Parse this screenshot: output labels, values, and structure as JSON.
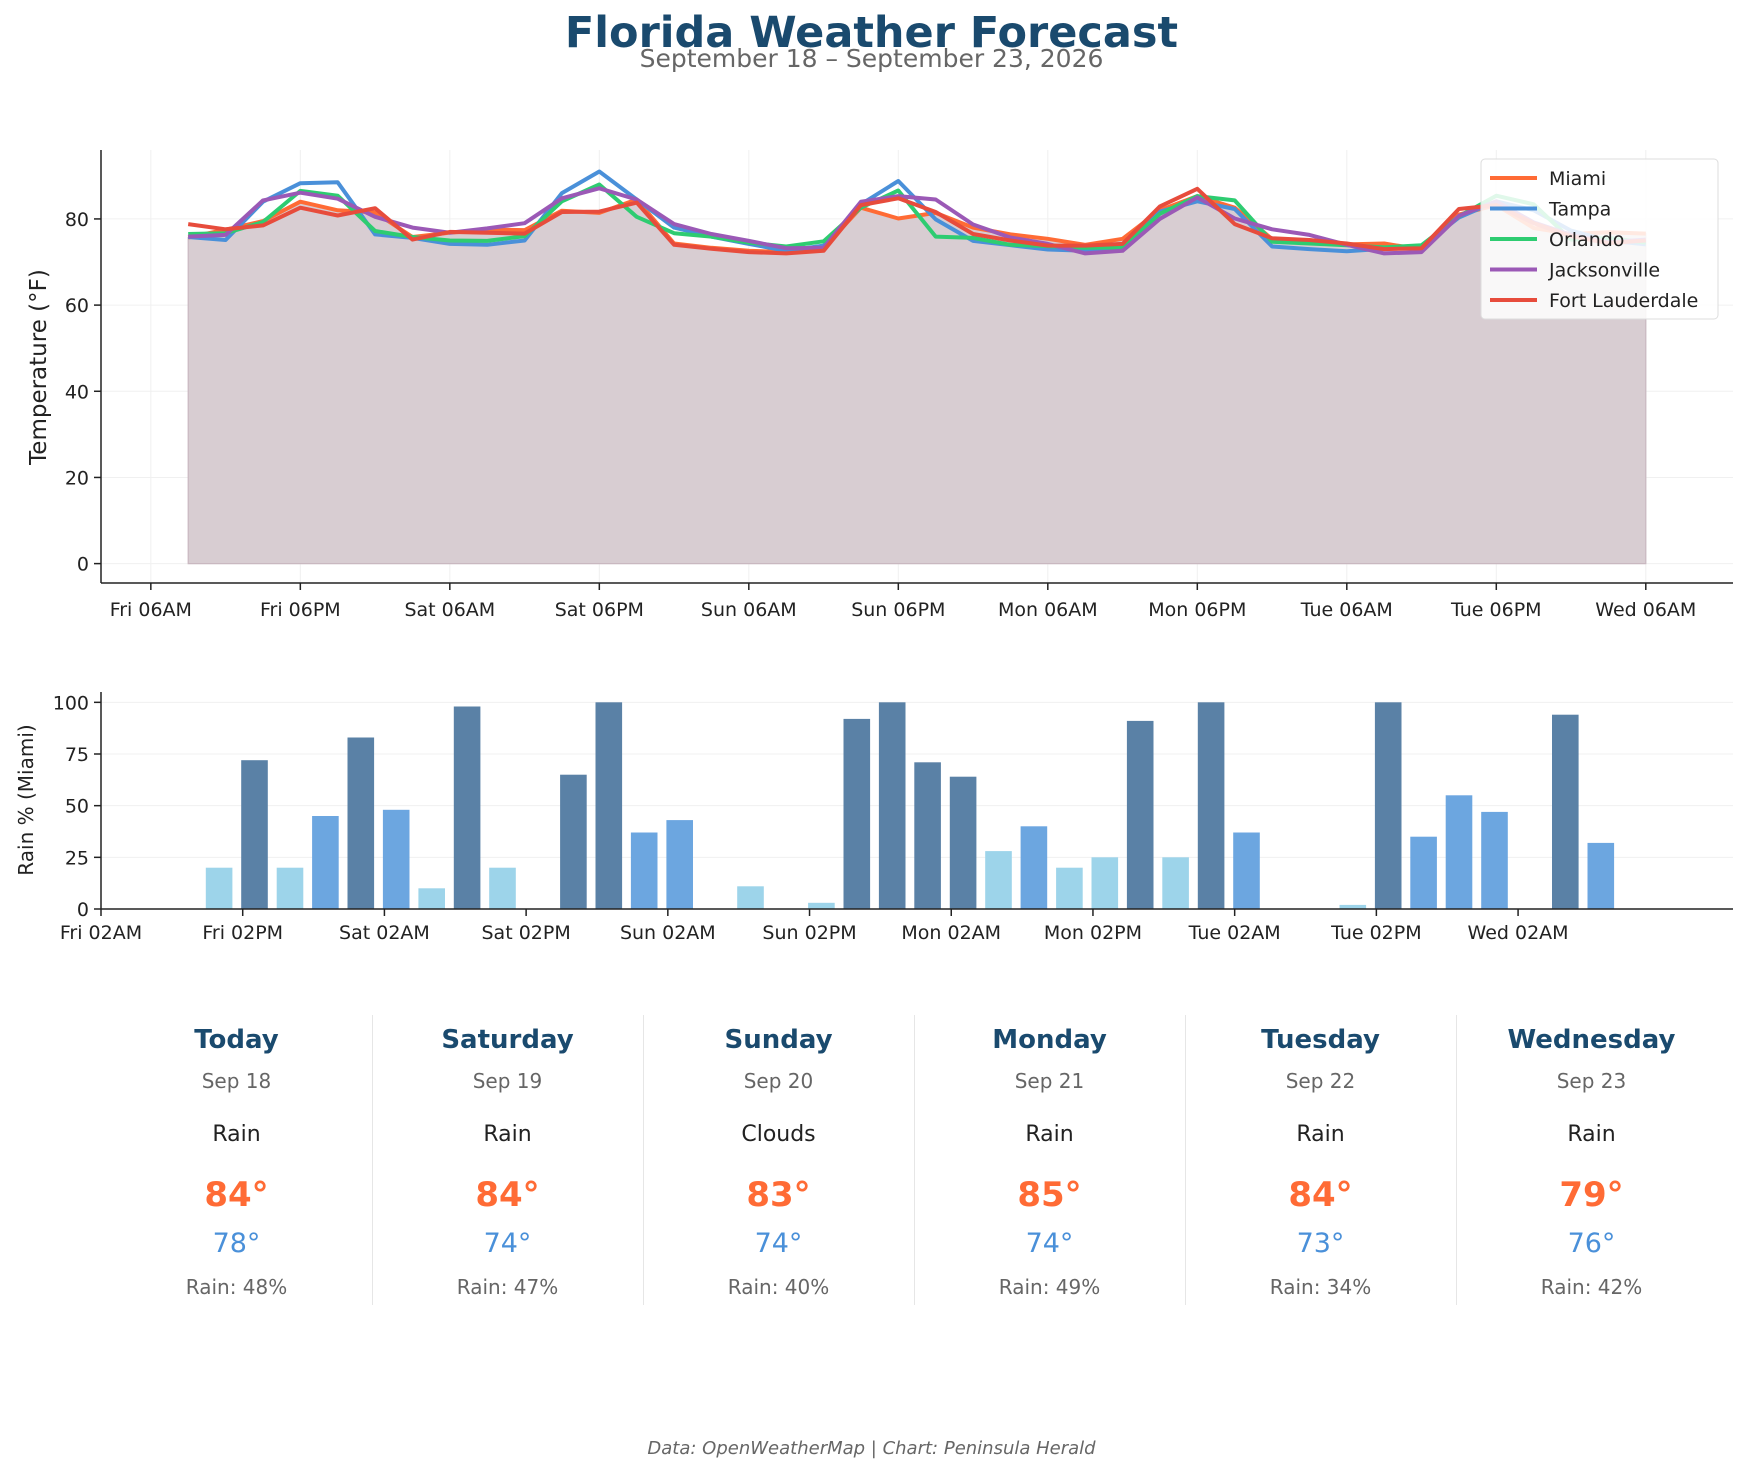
{
  "header": {
    "title": "Florida Weather Forecast",
    "subtitle": "September 18 – September 23, 2026"
  },
  "chart_data": [
    {
      "type": "line",
      "ylabel": "Temperature (°F)",
      "ylim": [
        -4.5,
        96
      ],
      "yticks": [
        0,
        20,
        40,
        60,
        80
      ],
      "x_ticks": [
        "Fri 06AM",
        "Fri 06PM",
        "Sat 06AM",
        "Sat 06PM",
        "Sun 06AM",
        "Sun 06PM",
        "Mon 06AM",
        "Mon 06PM",
        "Tue 06AM",
        "Tue 06PM",
        "Wed 06AM"
      ],
      "x_start": "Fri 09AM",
      "x_step_hours": 3,
      "grid": true,
      "legend": "top-right",
      "fill": {
        "series": "Miami",
        "color": "#d8cdd2"
      },
      "series": [
        {
          "name": "Miami",
          "color": "#ff6b35",
          "values": [
            75.7,
            77.5,
            79.5,
            84.0,
            82.0,
            81.5,
            75.8,
            76.8,
            77.5,
            77.4,
            81.9,
            81.4,
            84.5,
            74.3,
            73.3,
            72.6,
            72.3,
            73.3,
            82.6,
            80.1,
            81.4,
            78.0,
            76.4,
            75.4,
            74.0,
            75.4,
            82.0,
            85.3,
            82.6,
            75.3,
            75.0,
            74.1,
            74.3,
            72.9,
            81.0,
            83.2,
            77.9,
            76.5,
            76.9,
            76.6
          ]
        },
        {
          "name": "Tampa",
          "color": "#4a90d9",
          "values": [
            75.8,
            75.1,
            84.0,
            88.3,
            88.5,
            76.4,
            75.6,
            74.2,
            74.0,
            75.0,
            86.0,
            91.0,
            84.5,
            78.0,
            75.9,
            74.2,
            72.6,
            73.8,
            83.4,
            88.8,
            79.9,
            74.9,
            73.9,
            72.9,
            72.6,
            72.9,
            81.7,
            84.1,
            82.3,
            73.6,
            73.0,
            72.5,
            73.1,
            73.6,
            80.3,
            84.1,
            82.0,
            77.3,
            75.0,
            74.1
          ]
        },
        {
          "name": "Orlando",
          "color": "#2ecc71",
          "values": [
            76.5,
            76.7,
            79.3,
            86.5,
            85.4,
            77.2,
            75.8,
            75.0,
            74.9,
            76.0,
            84.1,
            88.0,
            80.5,
            76.7,
            75.9,
            74.5,
            73.6,
            74.8,
            82.6,
            86.6,
            75.9,
            75.6,
            74.0,
            73.7,
            73.3,
            73.4,
            81.2,
            85.3,
            84.3,
            74.7,
            74.3,
            73.9,
            73.4,
            73.9,
            80.6,
            85.4,
            83.4,
            75.2,
            75.6,
            74.5
          ]
        },
        {
          "name": "Jacksonville",
          "color": "#9b59b6",
          "values": [
            75.9,
            76.3,
            84.3,
            86.1,
            84.7,
            80.5,
            78.0,
            76.8,
            77.8,
            79.0,
            84.8,
            87.1,
            84.5,
            78.8,
            76.5,
            74.9,
            73.2,
            73.3,
            84.0,
            85.3,
            84.5,
            78.7,
            75.7,
            74.2,
            72.0,
            72.6,
            80.0,
            85.0,
            80.1,
            77.6,
            76.3,
            74.0,
            72.0,
            72.3,
            80.7,
            84.1,
            79.2,
            76.3,
            74.6,
            75.2
          ]
        },
        {
          "name": "Fort Lauderdale",
          "color": "#e74c3c",
          "values": [
            78.8,
            77.6,
            78.5,
            82.6,
            80.8,
            82.5,
            75.2,
            77.0,
            76.8,
            76.6,
            81.6,
            81.7,
            83.8,
            74.0,
            73.1,
            72.3,
            72.0,
            72.6,
            83.2,
            84.8,
            81.6,
            76.5,
            75.0,
            73.8,
            73.8,
            74.2,
            82.9,
            87.0,
            78.8,
            75.5,
            75.1,
            74.3,
            73.0,
            73.2,
            82.3,
            83.2,
            79.0,
            76.0,
            74.4,
            75.0
          ]
        }
      ]
    },
    {
      "type": "bar",
      "ylabel": "Rain % (Miami)",
      "ylim": [
        0,
        105
      ],
      "yticks": [
        0,
        25,
        50,
        75,
        100
      ],
      "x_ticks": [
        "Fri 02AM",
        "Fri 02PM",
        "Sat 02AM",
        "Sat 02PM",
        "Sun 02AM",
        "Sun 02PM",
        "Mon 02AM",
        "Mon 02PM",
        "Tue 02AM",
        "Tue 02PM",
        "Wed 02AM"
      ],
      "x_start": "Fri 09AM",
      "x_step_hours": 3,
      "color_scale": {
        "low": "#9dd4ea",
        "mid": "#6ca6e0",
        "high": "#5a81a6"
      },
      "values": [
        20,
        72,
        20,
        45,
        83,
        48,
        10,
        98,
        20,
        0,
        65,
        100,
        37,
        43,
        0,
        11,
        0,
        3,
        92,
        100,
        71,
        64,
        28,
        40,
        20,
        25,
        91,
        25,
        100,
        37,
        0,
        0,
        2,
        100,
        35,
        55,
        47,
        0,
        94,
        32
      ]
    }
  ],
  "forecast": [
    {
      "day": "Today",
      "date": "Sep 18",
      "condition": "Rain",
      "high": "84°",
      "low": "78°",
      "rain": "Rain: 48%"
    },
    {
      "day": "Saturday",
      "date": "Sep 19",
      "condition": "Rain",
      "high": "84°",
      "low": "74°",
      "rain": "Rain: 47%"
    },
    {
      "day": "Sunday",
      "date": "Sep 20",
      "condition": "Clouds",
      "high": "83°",
      "low": "74°",
      "rain": "Rain: 40%"
    },
    {
      "day": "Monday",
      "date": "Sep 21",
      "condition": "Rain",
      "high": "85°",
      "low": "74°",
      "rain": "Rain: 49%"
    },
    {
      "day": "Tuesday",
      "date": "Sep 22",
      "condition": "Rain",
      "high": "84°",
      "low": "73°",
      "rain": "Rain: 34%"
    },
    {
      "day": "Wednesday",
      "date": "Sep 23",
      "condition": "Rain",
      "high": "79°",
      "low": "76°",
      "rain": "Rain: 42%"
    }
  ],
  "footer": {
    "credit": "Data: OpenWeatherMap | Chart: Peninsula Herald"
  }
}
